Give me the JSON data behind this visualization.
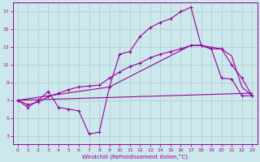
{
  "xlabel": "Windchill (Refroidissement éolien,°C)",
  "bg_color": "#cce8ec",
  "grid_color": "#aacccc",
  "line_color": "#990099",
  "xlim": [
    -0.5,
    23.5
  ],
  "ylim": [
    2.0,
    18.0
  ],
  "xticks": [
    0,
    1,
    2,
    3,
    4,
    5,
    6,
    7,
    8,
    9,
    10,
    11,
    12,
    13,
    14,
    15,
    16,
    17,
    18,
    19,
    20,
    21,
    22,
    23
  ],
  "yticks": [
    3,
    5,
    7,
    9,
    11,
    13,
    15,
    17
  ],
  "line1_x": [
    0,
    1,
    2,
    3,
    4,
    5,
    6,
    7,
    8,
    9,
    10,
    11,
    12,
    13,
    14,
    15,
    16,
    17,
    18,
    19,
    20,
    21,
    22,
    23
  ],
  "line1_y": [
    7.0,
    6.2,
    7.0,
    8.0,
    6.2,
    6.0,
    5.8,
    3.2,
    3.4,
    8.5,
    12.2,
    12.5,
    14.2,
    15.2,
    15.8,
    16.2,
    17.0,
    17.5,
    13.2,
    12.8,
    9.5,
    9.4,
    7.5,
    7.5
  ],
  "line2_x": [
    0,
    1,
    2,
    3,
    4,
    5,
    6,
    7,
    8,
    9,
    10,
    11,
    12,
    13,
    14,
    15,
    16,
    17,
    18,
    19,
    20,
    21,
    22,
    23
  ],
  "line2_y": [
    7.0,
    6.5,
    6.8,
    7.4,
    7.8,
    8.2,
    8.5,
    8.6,
    8.7,
    9.5,
    10.2,
    10.8,
    11.2,
    11.8,
    12.2,
    12.5,
    12.8,
    13.2,
    13.2,
    12.8,
    12.8,
    11.0,
    9.5,
    7.5
  ],
  "line3_x": [
    0,
    9,
    17,
    18,
    19,
    20,
    21,
    22,
    23
  ],
  "line3_y": [
    7.0,
    8.5,
    13.2,
    13.2,
    13.0,
    12.8,
    12.0,
    8.5,
    7.5
  ],
  "line4_x": [
    0,
    23
  ],
  "line4_y": [
    7.0,
    7.8
  ]
}
